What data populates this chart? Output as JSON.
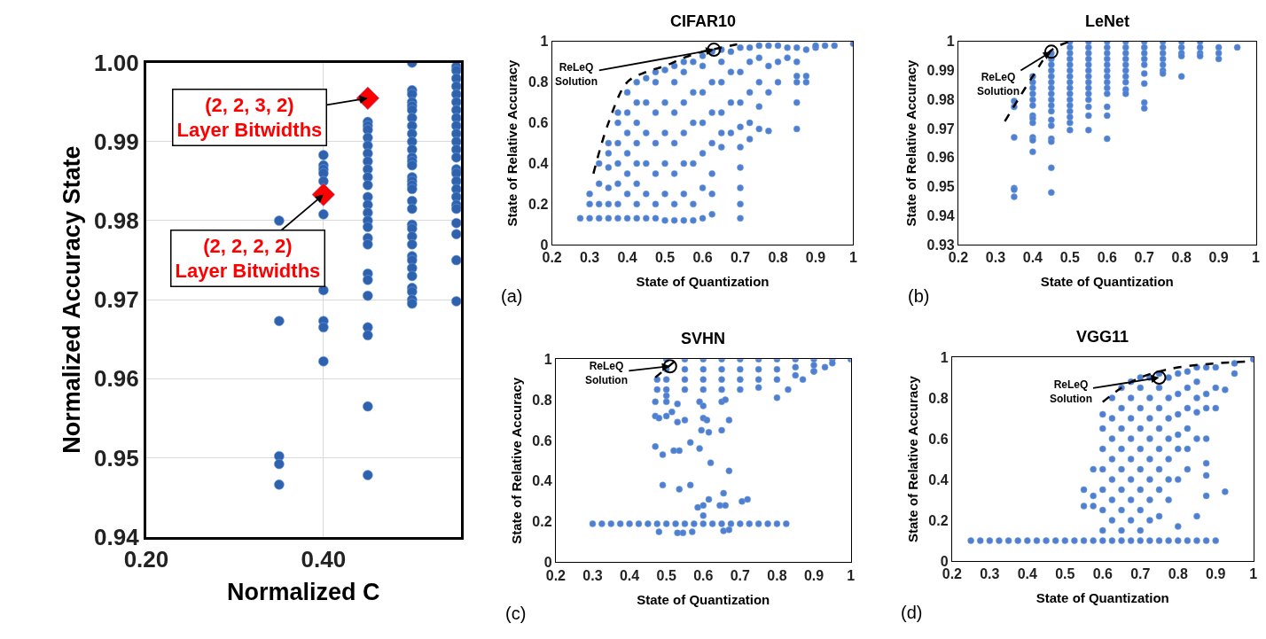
{
  "chart_data": [
    {
      "type": "scatter",
      "xlabel": "Normalized C",
      "ylabel": "Normalized Accuracy State",
      "xlim": [
        0.2,
        0.555
      ],
      "ylim": [
        0.94,
        1.0
      ],
      "xticks": [
        {
          "value": 0.2,
          "label": "0.20"
        },
        {
          "value": 0.4,
          "label": "0.40"
        }
      ],
      "yticks": [
        0.94,
        0.95,
        0.96,
        0.97,
        0.98,
        0.99,
        {
          "value": 1.0,
          "label": "1.00"
        }
      ],
      "grid": true,
      "marker": "circle",
      "series": [
        {
          "color": "#2f62ad",
          "x": [
            0.35,
            0.35,
            0.35,
            0.35,
            0.35,
            0.4,
            0.4,
            0.4,
            0.4,
            0.4,
            0.4,
            0.4,
            0.4,
            0.4,
            0.4,
            0.45,
            0.45,
            0.45,
            0.45,
            0.45,
            0.45,
            0.45,
            0.45,
            0.45,
            0.45,
            0.45,
            0.45,
            0.45,
            0.45,
            0.45,
            0.45,
            0.45,
            0.45,
            0.45,
            0.45,
            0.45,
            0.45,
            0.45,
            0.45,
            0.5,
            0.5,
            0.5,
            0.5,
            0.5,
            0.5,
            0.5,
            0.5,
            0.5,
            0.5,
            0.5,
            0.5,
            0.5,
            0.5,
            0.5,
            0.5,
            0.5,
            0.5,
            0.5,
            0.5,
            0.5,
            0.5,
            0.5,
            0.5,
            0.5,
            0.5,
            0.5,
            0.5,
            0.5,
            0.5,
            0.5,
            0.5,
            0.55,
            0.55,
            0.55,
            0.55,
            0.55,
            0.55,
            0.55,
            0.55,
            0.55,
            0.55,
            0.55,
            0.55,
            0.55,
            0.55,
            0.55,
            0.55,
            0.55,
            0.55,
            0.55,
            0.55,
            0.55,
            0.55,
            0.55,
            0.55
          ],
          "values": [
            0.98,
            0.9673,
            0.9502,
            0.9492,
            0.9466,
            0.9883,
            0.987,
            0.9865,
            0.986,
            0.985,
            0.9808,
            0.9712,
            0.9673,
            0.9665,
            0.9622,
            0.9925,
            0.992,
            0.9915,
            0.9905,
            0.9895,
            0.9885,
            0.9875,
            0.9865,
            0.9855,
            0.9845,
            0.983,
            0.982,
            0.981,
            0.98,
            0.9792,
            0.9778,
            0.977,
            0.9733,
            0.9725,
            0.9705,
            0.9665,
            0.9655,
            0.9565,
            0.9478,
            1.0,
            0.9965,
            0.996,
            0.995,
            0.9945,
            0.994,
            0.993,
            0.992,
            0.991,
            0.99,
            0.989,
            0.988,
            0.9875,
            0.987,
            0.9855,
            0.985,
            0.9845,
            0.984,
            0.9825,
            0.9815,
            0.9795,
            0.979,
            0.978,
            0.977,
            0.9755,
            0.975,
            0.974,
            0.973,
            0.9715,
            0.971,
            0.97,
            0.9695,
            0.9995,
            0.999,
            0.998,
            0.997,
            0.996,
            0.995,
            0.994,
            0.993,
            0.992,
            0.991,
            0.99,
            0.989,
            0.988,
            0.9865,
            0.986,
            0.985,
            0.984,
            0.983,
            0.982,
            0.9815,
            0.9797,
            0.9783,
            0.975,
            0.9698
          ]
        },
        {
          "color": "#ff0000",
          "marker": "diamond",
          "x": [
            0.45,
            0.4
          ],
          "values": [
            0.9955,
            0.9833
          ]
        }
      ],
      "annotations": [
        {
          "text": "(2, 2, 3, 2)\nLayer Bitwidths",
          "x": 0.45,
          "y": 0.9955
        },
        {
          "text": "(2, 2, 2, 2)\nLayer Bitwidths",
          "x": 0.4,
          "y": 0.9833
        }
      ]
    },
    {
      "type": "scatter",
      "title": "CIFAR10",
      "xlabel": "State of Quantization",
      "ylabel": "State of Relative Accuracy",
      "xlim": [
        0.2,
        1.0
      ],
      "ylim": [
        0,
        1
      ],
      "xticks": [
        0.2,
        0.3,
        0.4,
        0.5,
        0.6,
        0.7,
        0.8,
        0.9,
        1
      ],
      "yticks": [
        0,
        0.2,
        0.4,
        0.6,
        0.8,
        1
      ],
      "marker": "circle",
      "series": [
        {
          "color": "#4f7fcf",
          "x": [
            0.275,
            0.3,
            0.3,
            0.3,
            0.325,
            0.325,
            0.325,
            0.325,
            0.35,
            0.35,
            0.35,
            0.35,
            0.35,
            0.35,
            0.375,
            0.375,
            0.375,
            0.375,
            0.375,
            0.375,
            0.375,
            0.4,
            0.4,
            0.4,
            0.4,
            0.4,
            0.4,
            0.4,
            0.425,
            0.425,
            0.425,
            0.425,
            0.425,
            0.425,
            0.425,
            0.425,
            0.45,
            0.45,
            0.45,
            0.45,
            0.45,
            0.45,
            0.475,
            0.475,
            0.475,
            0.475,
            0.475,
            0.475,
            0.475,
            0.5,
            0.5,
            0.5,
            0.5,
            0.5,
            0.5,
            0.525,
            0.525,
            0.525,
            0.525,
            0.525,
            0.525,
            0.525,
            0.55,
            0.55,
            0.55,
            0.55,
            0.55,
            0.55,
            0.55,
            0.575,
            0.575,
            0.575,
            0.575,
            0.575,
            0.575,
            0.6,
            0.6,
            0.6,
            0.6,
            0.6,
            0.6,
            0.6,
            0.625,
            0.625,
            0.625,
            0.625,
            0.625,
            0.625,
            0.625,
            0.65,
            0.65,
            0.65,
            0.65,
            0.65,
            0.65,
            0.675,
            0.675,
            0.675,
            0.675,
            0.7,
            0.7,
            0.7,
            0.7,
            0.7,
            0.7,
            0.7,
            0.7,
            0.7,
            0.725,
            0.725,
            0.725,
            0.725,
            0.725,
            0.75,
            0.75,
            0.75,
            0.75,
            0.75,
            0.775,
            0.775,
            0.775,
            0.775,
            0.8,
            0.8,
            0.8,
            0.825,
            0.825,
            0.85,
            0.85,
            0.85,
            0.85,
            0.85,
            0.85,
            0.875,
            0.875,
            0.875,
            0.9,
            0.9,
            0.925,
            0.95,
            1.0
          ],
          "values": [
            0.13,
            0.13,
            0.2,
            0.25,
            0.13,
            0.2,
            0.3,
            0.4,
            0.13,
            0.2,
            0.28,
            0.38,
            0.45,
            0.5,
            0.13,
            0.2,
            0.3,
            0.4,
            0.5,
            0.6,
            0.65,
            0.13,
            0.25,
            0.35,
            0.45,
            0.55,
            0.65,
            0.75,
            0.13,
            0.2,
            0.3,
            0.4,
            0.5,
            0.6,
            0.7,
            0.8,
            0.13,
            0.25,
            0.4,
            0.55,
            0.7,
            0.82,
            0.13,
            0.2,
            0.35,
            0.5,
            0.65,
            0.8,
            0.85,
            0.12,
            0.25,
            0.4,
            0.55,
            0.7,
            0.86,
            0.12,
            0.2,
            0.35,
            0.5,
            0.65,
            0.8,
            0.88,
            0.12,
            0.25,
            0.4,
            0.55,
            0.7,
            0.85,
            0.9,
            0.12,
            0.2,
            0.4,
            0.6,
            0.75,
            0.9,
            0.13,
            0.28,
            0.45,
            0.6,
            0.75,
            0.88,
            0.93,
            0.15,
            0.25,
            0.35,
            0.5,
            0.65,
            0.8,
            0.95,
            0.48,
            0.55,
            0.65,
            0.8,
            0.9,
            0.96,
            0.55,
            0.7,
            0.85,
            0.95,
            0.13,
            0.2,
            0.28,
            0.38,
            0.48,
            0.58,
            0.7,
            0.85,
            0.97,
            0.52,
            0.6,
            0.75,
            0.9,
            0.97,
            0.57,
            0.68,
            0.8,
            0.92,
            0.98,
            0.56,
            0.75,
            0.88,
            0.98,
            0.8,
            0.9,
            0.98,
            0.92,
            0.97,
            0.57,
            0.7,
            0.8,
            0.83,
            0.9,
            0.97,
            0.8,
            0.83,
            0.96,
            0.97,
            0.98,
            0.98,
            0.98,
            0.99
          ]
        },
        {
          "type": "line",
          "marker": "none",
          "line_style": "dashed",
          "color": "#000000",
          "x": [
            0.31,
            0.35,
            0.4,
            0.45,
            0.5,
            0.55,
            0.6,
            0.65,
            0.7
          ],
          "values": [
            0.35,
            0.6,
            0.8,
            0.85,
            0.88,
            0.92,
            0.95,
            0.97,
            0.99
          ]
        },
        {
          "marker": "circle-open",
          "color": "#000000",
          "x": [
            0.63
          ],
          "values": [
            0.96
          ]
        }
      ],
      "annotations": [
        {
          "text": "ReLeQ\nSolution",
          "x": 0.63,
          "y": 0.96
        },
        "(a)"
      ]
    },
    {
      "type": "scatter",
      "title": "LeNet",
      "xlabel": "State of Quantization",
      "ylabel": "State of Relative Accuracy",
      "xlim": [
        0.2,
        1.0
      ],
      "ylim": [
        0.93,
        1.0
      ],
      "xticks": [
        0.2,
        0.3,
        0.4,
        0.5,
        0.6,
        0.7,
        0.8,
        0.9,
        1
      ],
      "yticks": [
        0.93,
        0.94,
        0.95,
        0.96,
        0.97,
        0.98,
        0.99,
        1
      ],
      "marker": "circle",
      "series": [
        {
          "color": "#4f7fcf",
          "x": [
            0.35,
            0.35,
            0.35,
            0.35,
            0.35,
            0.35,
            0.4,
            0.4,
            0.4,
            0.4,
            0.4,
            0.4,
            0.4,
            0.4,
            0.4,
            0.4,
            0.4,
            0.4,
            0.45,
            0.45,
            0.45,
            0.45,
            0.45,
            0.45,
            0.45,
            0.45,
            0.45,
            0.45,
            0.45,
            0.45,
            0.45,
            0.45,
            0.45,
            0.45,
            0.45,
            0.5,
            0.5,
            0.5,
            0.5,
            0.5,
            0.5,
            0.5,
            0.5,
            0.5,
            0.5,
            0.5,
            0.5,
            0.5,
            0.5,
            0.5,
            0.5,
            0.55,
            0.55,
            0.55,
            0.55,
            0.55,
            0.55,
            0.55,
            0.55,
            0.55,
            0.55,
            0.55,
            0.55,
            0.55,
            0.55,
            0.6,
            0.6,
            0.6,
            0.6,
            0.6,
            0.6,
            0.6,
            0.6,
            0.6,
            0.6,
            0.6,
            0.6,
            0.6,
            0.65,
            0.65,
            0.65,
            0.65,
            0.65,
            0.65,
            0.65,
            0.65,
            0.65,
            0.65,
            0.7,
            0.7,
            0.7,
            0.7,
            0.7,
            0.7,
            0.7,
            0.7,
            0.7,
            0.75,
            0.75,
            0.75,
            0.75,
            0.75,
            0.75,
            0.75,
            0.8,
            0.8,
            0.8,
            0.8,
            0.8,
            0.85,
            0.85,
            0.85,
            0.85,
            0.9,
            0.9,
            0.9,
            0.95
          ],
          "values": [
            0.9795,
            0.9775,
            0.967,
            0.9495,
            0.949,
            0.9465,
            0.988,
            0.986,
            0.984,
            0.982,
            0.98,
            0.978,
            0.9745,
            0.9735,
            0.972,
            0.967,
            0.966,
            0.962,
            0.996,
            0.994,
            0.992,
            0.99,
            0.988,
            0.986,
            0.984,
            0.982,
            0.98,
            0.978,
            0.976,
            0.973,
            0.971,
            0.9665,
            0.9655,
            0.9565,
            0.948,
            1.0,
            0.998,
            0.996,
            0.994,
            0.992,
            0.99,
            0.988,
            0.986,
            0.984,
            0.982,
            0.98,
            0.978,
            0.976,
            0.974,
            0.972,
            0.9695,
            1.0,
            0.998,
            0.996,
            0.994,
            0.992,
            0.99,
            0.988,
            0.986,
            0.984,
            0.982,
            0.98,
            0.9775,
            0.9745,
            0.9695,
            1.0,
            0.998,
            0.996,
            0.994,
            0.992,
            0.99,
            0.988,
            0.986,
            0.984,
            0.982,
            0.9775,
            0.9745,
            0.9665,
            1.0,
            0.998,
            0.996,
            0.994,
            0.992,
            0.99,
            0.988,
            0.986,
            0.9835,
            0.982,
            1.0,
            0.998,
            0.996,
            0.994,
            0.992,
            0.989,
            0.9855,
            0.979,
            0.977,
            1.0,
            0.998,
            0.996,
            0.994,
            0.992,
            0.99,
            0.989,
            1.0,
            0.998,
            0.996,
            0.995,
            0.988,
            1.0,
            0.998,
            0.996,
            0.995,
            0.998,
            0.996,
            0.994,
            0.998
          ]
        },
        {
          "type": "line",
          "marker": "none",
          "line_style": "dashed",
          "color": "#000000",
          "x": [
            0.325,
            0.4,
            0.45,
            0.5
          ],
          "values": [
            0.9725,
            0.988,
            0.997,
            1.0
          ]
        },
        {
          "marker": "circle-open",
          "color": "#000000",
          "x": [
            0.45
          ],
          "values": [
            0.9965
          ]
        }
      ],
      "annotations": [
        {
          "text": "ReLeQ\nSolution",
          "x": 0.45,
          "y": 0.9965
        },
        "(b)"
      ]
    },
    {
      "type": "scatter",
      "title": "SVHN",
      "xlabel": "State of Quantization",
      "ylabel": "State of Relative Accuracy",
      "xlim": [
        0.2,
        1.0
      ],
      "ylim": [
        0,
        1
      ],
      "xticks": [
        0.2,
        0.3,
        0.4,
        0.5,
        0.6,
        0.7,
        0.8,
        0.9,
        1
      ],
      "yticks": [
        0,
        0.2,
        0.4,
        0.6,
        0.8,
        1
      ],
      "marker": "circle",
      "series": [
        {
          "color": "#4f7fcf",
          "x": [
            0.3,
            0.325,
            0.35,
            0.375,
            0.4,
            0.425,
            0.45,
            0.475,
            0.5,
            0.525,
            0.55,
            0.575,
            0.6,
            0.625,
            0.65,
            0.675,
            0.7,
            0.725,
            0.75,
            0.775,
            0.8,
            0.825,
            0.48,
            0.53,
            0.545,
            0.57,
            0.655,
            0.67,
            0.6,
            0.47,
            0.48,
            0.5,
            0.515,
            0.53,
            0.55,
            0.6,
            0.61,
            0.595,
            0.615,
            0.65,
            0.67,
            0.47,
            0.49,
            0.52,
            0.535,
            0.565,
            0.59,
            0.62,
            0.67,
            0.49,
            0.535,
            0.565,
            0.6,
            0.585,
            0.615,
            0.655,
            0.645,
            0.66,
            0.705,
            0.72,
            0.47,
            0.5,
            0.53,
            0.59,
            0.6,
            0.65,
            0.66,
            0.475,
            0.5,
            0.8,
            0.83,
            0.87,
            0.9,
            0.93,
            0.475,
            0.5,
            0.5,
            0.5,
            0.5,
            0.55,
            0.55,
            0.55,
            0.55,
            0.6,
            0.6,
            0.6,
            0.6,
            0.65,
            0.65,
            0.65,
            0.65,
            0.7,
            0.7,
            0.7,
            0.7,
            0.75,
            0.75,
            0.75,
            0.75,
            0.8,
            0.8,
            0.8,
            0.85,
            0.85,
            0.85,
            0.9,
            0.9,
            0.9,
            0.95,
            0.95,
            1.0
          ],
          "values": [
            0.19,
            0.19,
            0.19,
            0.19,
            0.19,
            0.19,
            0.19,
            0.19,
            0.19,
            0.19,
            0.19,
            0.19,
            0.19,
            0.19,
            0.19,
            0.19,
            0.19,
            0.19,
            0.19,
            0.19,
            0.19,
            0.19,
            0.15,
            0.145,
            0.145,
            0.15,
            0.155,
            0.16,
            0.23,
            0.72,
            0.71,
            0.72,
            0.74,
            0.69,
            0.7,
            0.71,
            0.7,
            0.65,
            0.64,
            0.65,
            0.7,
            0.57,
            0.53,
            0.55,
            0.55,
            0.59,
            0.56,
            0.49,
            0.45,
            0.38,
            0.36,
            0.38,
            0.28,
            0.27,
            0.31,
            0.34,
            0.28,
            0.28,
            0.3,
            0.31,
            0.79,
            0.79,
            0.78,
            0.79,
            0.77,
            0.79,
            0.8,
            0.85,
            0.82,
            0.81,
            0.85,
            0.9,
            0.94,
            0.96,
            0.9,
            1.0,
            0.95,
            0.9,
            0.85,
            1.0,
            0.95,
            0.9,
            0.85,
            1.0,
            0.95,
            0.9,
            0.85,
            1.0,
            0.95,
            0.9,
            0.85,
            1.0,
            0.95,
            0.9,
            0.85,
            1.0,
            0.95,
            0.9,
            0.86,
            1.0,
            0.95,
            0.9,
            1.0,
            0.96,
            0.92,
            1.0,
            0.97,
            0.94,
            1.0,
            0.98,
            1.0
          ]
        },
        {
          "type": "line",
          "marker": "none",
          "line_style": "dashed",
          "color": "#000000",
          "x": [
            0.47,
            0.53
          ],
          "values": [
            0.91,
            1.0
          ]
        },
        {
          "marker": "circle-open",
          "color": "#000000",
          "x": [
            0.51
          ],
          "values": [
            0.965
          ]
        }
      ],
      "annotations": [
        {
          "text": "ReLeQ\nSolution",
          "x": 0.51,
          "y": 0.965
        },
        "(c)"
      ]
    },
    {
      "type": "scatter",
      "title": "VGG11",
      "xlabel": "State of Quantization",
      "ylabel": "State of Relative Accuracy",
      "xlim": [
        0.2,
        1.0
      ],
      "ylim": [
        0,
        1
      ],
      "xticks": [
        0.2,
        0.3,
        0.4,
        0.5,
        0.6,
        0.7,
        0.8,
        0.9,
        1
      ],
      "yticks": [
        0,
        0.2,
        0.4,
        0.6,
        0.8,
        1
      ],
      "marker": "circle",
      "series": [
        {
          "color": "#4f7fcf",
          "x": [
            0.25,
            0.275,
            0.3,
            0.325,
            0.35,
            0.375,
            0.4,
            0.425,
            0.45,
            0.475,
            0.5,
            0.525,
            0.55,
            0.575,
            0.6,
            0.625,
            0.65,
            0.675,
            0.7,
            0.725,
            0.75,
            0.775,
            0.8,
            0.825,
            0.85,
            0.875,
            0.9,
            0.55,
            0.55,
            0.575,
            0.575,
            0.575,
            0.6,
            0.6,
            0.6,
            0.6,
            0.6,
            0.6,
            0.6,
            0.625,
            0.625,
            0.625,
            0.625,
            0.625,
            0.625,
            0.625,
            0.65,
            0.65,
            0.65,
            0.65,
            0.65,
            0.65,
            0.65,
            0.65,
            0.675,
            0.675,
            0.675,
            0.675,
            0.675,
            0.675,
            0.675,
            0.675,
            0.7,
            0.7,
            0.7,
            0.7,
            0.7,
            0.7,
            0.7,
            0.7,
            0.7,
            0.725,
            0.725,
            0.725,
            0.725,
            0.725,
            0.725,
            0.725,
            0.725,
            0.75,
            0.75,
            0.75,
            0.75,
            0.75,
            0.75,
            0.75,
            0.75,
            0.775,
            0.775,
            0.775,
            0.775,
            0.775,
            0.775,
            0.775,
            0.8,
            0.8,
            0.8,
            0.8,
            0.8,
            0.8,
            0.8,
            0.825,
            0.825,
            0.825,
            0.825,
            0.825,
            0.825,
            0.85,
            0.85,
            0.85,
            0.85,
            0.85,
            0.85,
            0.875,
            0.875,
            0.875,
            0.875,
            0.875,
            0.875,
            0.875,
            0.9,
            0.9,
            0.9,
            0.925,
            0.925,
            0.95,
            0.95,
            1.0
          ],
          "values": [
            0.1,
            0.1,
            0.1,
            0.1,
            0.1,
            0.1,
            0.1,
            0.1,
            0.1,
            0.1,
            0.1,
            0.1,
            0.1,
            0.1,
            0.1,
            0.1,
            0.1,
            0.1,
            0.1,
            0.1,
            0.1,
            0.1,
            0.1,
            0.1,
            0.1,
            0.1,
            0.1,
            0.27,
            0.35,
            0.27,
            0.32,
            0.45,
            0.15,
            0.25,
            0.35,
            0.45,
            0.55,
            0.65,
            0.72,
            0.2,
            0.3,
            0.4,
            0.5,
            0.6,
            0.7,
            0.8,
            0.15,
            0.25,
            0.35,
            0.45,
            0.55,
            0.65,
            0.75,
            0.85,
            0.2,
            0.3,
            0.4,
            0.5,
            0.6,
            0.7,
            0.8,
            0.88,
            0.15,
            0.25,
            0.35,
            0.45,
            0.55,
            0.65,
            0.75,
            0.85,
            0.9,
            0.2,
            0.3,
            0.4,
            0.5,
            0.6,
            0.7,
            0.8,
            0.9,
            0.22,
            0.35,
            0.45,
            0.55,
            0.65,
            0.75,
            0.85,
            0.92,
            0.3,
            0.4,
            0.5,
            0.6,
            0.7,
            0.8,
            0.9,
            0.17,
            0.4,
            0.55,
            0.62,
            0.72,
            0.82,
            0.92,
            0.45,
            0.55,
            0.65,
            0.75,
            0.85,
            0.93,
            0.22,
            0.6,
            0.73,
            0.8,
            0.88,
            0.95,
            0.32,
            0.42,
            0.48,
            0.6,
            0.75,
            0.82,
            0.95,
            0.75,
            0.85,
            0.95,
            0.34,
            0.84,
            0.92,
            0.97,
            0.99
          ]
        },
        {
          "type": "line",
          "marker": "none",
          "line_style": "dashed",
          "color": "#000000",
          "x": [
            0.6,
            0.65,
            0.7,
            0.75,
            0.8,
            0.9,
            1.0
          ],
          "values": [
            0.78,
            0.85,
            0.9,
            0.93,
            0.95,
            0.97,
            0.98
          ]
        },
        {
          "marker": "circle-open",
          "color": "#000000",
          "x": [
            0.75
          ],
          "values": [
            0.9
          ]
        }
      ],
      "annotations": [
        {
          "text": "ReLeQ\nSolution",
          "x": 0.75,
          "y": 0.9
        },
        "(d)"
      ]
    }
  ]
}
